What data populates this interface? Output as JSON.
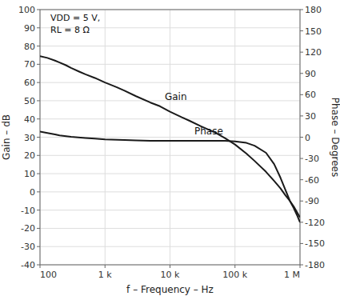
{
  "chart_data": {
    "type": "line",
    "xlabel": "f – Frequency – Hz",
    "ylabel": "Gain – dB",
    "y2label": "Phase – Degrees",
    "log": "x",
    "grid": true,
    "xlim": [
      100,
      1000000
    ],
    "xticks": [
      100,
      {
        "value": 1000,
        "label": "1 k"
      },
      {
        "value": 10000,
        "label": "10 k"
      },
      {
        "value": 100000,
        "label": "100 k"
      },
      {
        "value": 1000000,
        "label": "1 M"
      }
    ],
    "ylim": [
      -40,
      100
    ],
    "yticks": [
      -40,
      -30,
      -20,
      -10,
      0,
      10,
      20,
      30,
      40,
      50,
      60,
      70,
      80,
      90,
      100
    ],
    "y2lim": [
      -180,
      180
    ],
    "y2ticks": [
      -180,
      -150,
      -120,
      -90,
      -60,
      -30,
      0,
      30,
      60,
      90,
      120,
      150,
      180
    ],
    "annotations": [
      "VDD = 5 V,",
      "RL = 8 Ω"
    ],
    "series": [
      {
        "name": "Gain",
        "color": "#1a1a1a",
        "x": [
          100,
          130,
          170,
          200,
          250,
          300,
          400,
          500,
          700,
          1000,
          1500,
          2000,
          3000,
          5000,
          7000,
          10000,
          15000,
          20000,
          30000,
          50000,
          70000,
          100000,
          150000,
          200000,
          300000,
          400000,
          500000,
          600000,
          700000,
          800000,
          1000000
        ],
        "values": [
          74.5,
          73.5,
          72,
          71,
          69.5,
          68,
          66,
          64.5,
          62.5,
          60,
          57.5,
          55.5,
          52.5,
          49,
          47,
          44,
          41,
          39,
          36,
          32.5,
          29.5,
          26,
          21,
          17,
          11,
          6,
          2,
          -2,
          -5,
          -8,
          -14
        ]
      },
      {
        "name": "Phase",
        "color": "#1a1a1a",
        "axis": "y2",
        "x": [
          100,
          130,
          170,
          200,
          300,
          500,
          700,
          1000,
          2000,
          3000,
          5000,
          7000,
          10000,
          20000,
          30000,
          50000,
          70000,
          100000,
          150000,
          200000,
          300000,
          400000,
          500000,
          600000,
          700000,
          800000,
          900000,
          1000000
        ],
        "values": [
          8,
          6,
          4,
          2.5,
          0.5,
          -1,
          -2,
          -3,
          -4,
          -4.5,
          -5,
          -5,
          -5,
          -5,
          -5,
          -5,
          -5,
          -6,
          -8,
          -12,
          -22,
          -38,
          -57,
          -75,
          -90,
          -100,
          -110,
          -120
        ]
      }
    ]
  }
}
